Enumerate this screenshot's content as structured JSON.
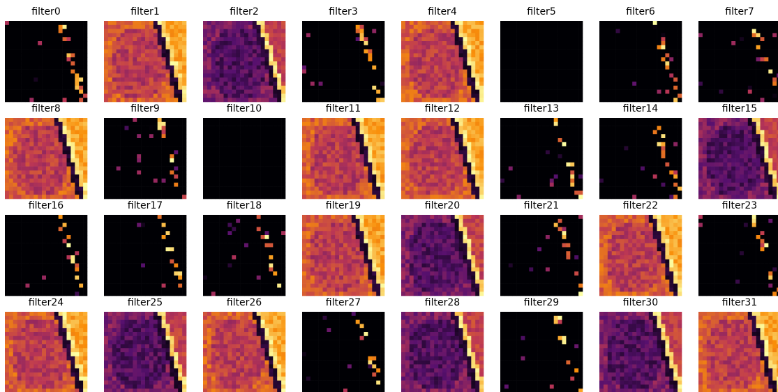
{
  "panels": [
    {
      "title": "filter0"
    },
    {
      "title": "filter1"
    },
    {
      "title": "filter2"
    },
    {
      "title": "filter3"
    },
    {
      "title": "filter4"
    },
    {
      "title": "filter5"
    },
    {
      "title": "filter6"
    },
    {
      "title": "filter7"
    },
    {
      "title": "filter8"
    },
    {
      "title": "filter9"
    },
    {
      "title": "filter10"
    },
    {
      "title": "filter11"
    },
    {
      "title": "filter12"
    },
    {
      "title": "filter13"
    },
    {
      "title": "filter14"
    },
    {
      "title": "filter15"
    },
    {
      "title": "filter16"
    },
    {
      "title": "filter17"
    },
    {
      "title": "filter18"
    },
    {
      "title": "filter19"
    },
    {
      "title": "filter20"
    },
    {
      "title": "filter21"
    },
    {
      "title": "filter22"
    },
    {
      "title": "filter23"
    },
    {
      "title": "filter24"
    },
    {
      "title": "filter25"
    },
    {
      "title": "filter26"
    },
    {
      "title": "filter27"
    },
    {
      "title": "filter28"
    },
    {
      "title": "filter29"
    },
    {
      "title": "filter30"
    },
    {
      "title": "filter31"
    }
  ]
}
